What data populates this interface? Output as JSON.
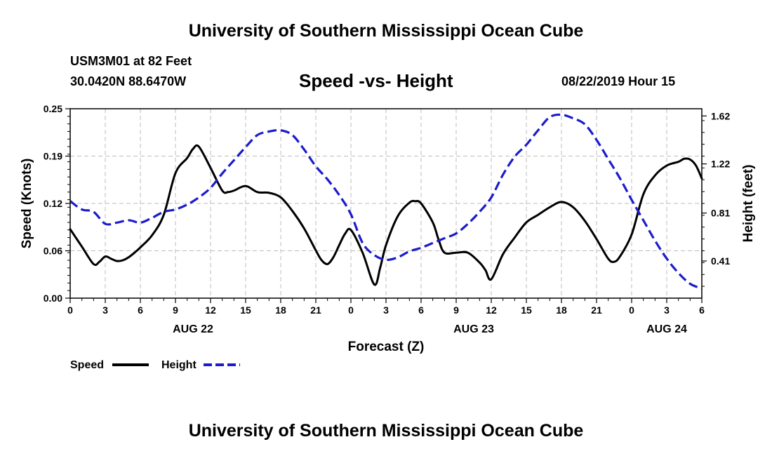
{
  "header": {
    "title": "University of Southern Mississippi Ocean Cube",
    "station": "USM3M01 at 82 Feet",
    "coordinates": "30.0420N 88.6470W",
    "subtitle": "Speed -vs- Height",
    "datetime": "08/22/2019 Hour 15"
  },
  "footer": {
    "title": "University of Southern Mississippi Ocean Cube"
  },
  "chart_data": {
    "type": "line",
    "title": "Speed -vs- Height",
    "xlabel": "Forecast (Z)",
    "ylabel_left": "Speed (Knots)",
    "ylabel_right": "Height (feet)",
    "grid": true,
    "xlim": [
      0,
      54
    ],
    "ylim_left": [
      0,
      0.25
    ],
    "ylim_right": [
      0.1,
      1.68
    ],
    "x_ticks": [
      {
        "x": 0,
        "label": "0"
      },
      {
        "x": 3,
        "label": "3"
      },
      {
        "x": 6,
        "label": "6"
      },
      {
        "x": 9,
        "label": "9"
      },
      {
        "x": 12,
        "label": "12"
      },
      {
        "x": 15,
        "label": "15"
      },
      {
        "x": 18,
        "label": "18"
      },
      {
        "x": 21,
        "label": "21"
      },
      {
        "x": 24,
        "label": "0"
      },
      {
        "x": 27,
        "label": "3"
      },
      {
        "x": 30,
        "label": "6"
      },
      {
        "x": 33,
        "label": "9"
      },
      {
        "x": 36,
        "label": "12"
      },
      {
        "x": 39,
        "label": "15"
      },
      {
        "x": 42,
        "label": "18"
      },
      {
        "x": 45,
        "label": "21"
      },
      {
        "x": 48,
        "label": "0"
      },
      {
        "x": 51,
        "label": "3"
      },
      {
        "x": 54,
        "label": "6"
      }
    ],
    "date_labels": [
      {
        "x": 10.5,
        "label": "AUG 22"
      },
      {
        "x": 34.5,
        "label": "AUG 23"
      },
      {
        "x": 51,
        "label": "AUG 24"
      }
    ],
    "y_ticks_left": [
      {
        "value": 0.0,
        "label": "0.00"
      },
      {
        "value": 0.0625,
        "label": "0.06"
      },
      {
        "value": 0.125,
        "label": "0.12"
      },
      {
        "value": 0.1875,
        "label": "0.19"
      },
      {
        "value": 0.25,
        "label": "0.25"
      }
    ],
    "y_ticks_right": [
      {
        "value": 0.41,
        "label": "0.41"
      },
      {
        "value": 0.81,
        "label": "0.81"
      },
      {
        "value": 1.22,
        "label": "1.22"
      },
      {
        "value": 1.62,
        "label": "1.62"
      }
    ],
    "legend": {
      "position": "bottom-left",
      "items": [
        {
          "name": "Speed",
          "style": "solid",
          "color": "#000000"
        },
        {
          "name": "Height",
          "style": "dashed",
          "color": "#1c1ccc"
        }
      ]
    },
    "series": [
      {
        "name": "Speed",
        "axis": "left",
        "style": "solid",
        "color": "#000000",
        "x": [
          0,
          1,
          2,
          2.5,
          3,
          3.5,
          4,
          4.5,
          5,
          5.5,
          6,
          7,
          8,
          9,
          10,
          10.5,
          11,
          12,
          13,
          13.5,
          14,
          15,
          16,
          17,
          18,
          19,
          20,
          21,
          21.5,
          22,
          22.5,
          23,
          23.5,
          24,
          25,
          26,
          26.5,
          27,
          28,
          29,
          29.5,
          30,
          31,
          31.5,
          32,
          33,
          34,
          35,
          35.5,
          36,
          37,
          38,
          39,
          40,
          41,
          42,
          43,
          44,
          45,
          46,
          46.5,
          47,
          48,
          49,
          50,
          51,
          52,
          52.5,
          53,
          53.5,
          54
        ],
        "y": [
          0.091,
          0.068,
          0.045,
          0.048,
          0.055,
          0.052,
          0.049,
          0.05,
          0.054,
          0.06,
          0.067,
          0.083,
          0.11,
          0.165,
          0.185,
          0.197,
          0.2,
          0.172,
          0.142,
          0.14,
          0.142,
          0.148,
          0.14,
          0.139,
          0.133,
          0.115,
          0.092,
          0.063,
          0.05,
          0.045,
          0.054,
          0.07,
          0.085,
          0.09,
          0.06,
          0.018,
          0.04,
          0.07,
          0.108,
          0.126,
          0.128,
          0.125,
          0.1,
          0.077,
          0.06,
          0.06,
          0.06,
          0.047,
          0.037,
          0.025,
          0.058,
          0.08,
          0.1,
          0.11,
          0.12,
          0.127,
          0.12,
          0.102,
          0.078,
          0.052,
          0.048,
          0.055,
          0.084,
          0.137,
          0.162,
          0.175,
          0.18,
          0.184,
          0.183,
          0.175,
          0.158
        ]
      },
      {
        "name": "Height",
        "axis": "right",
        "style": "dashed",
        "color": "#1c1ccc",
        "x": [
          0,
          1,
          2,
          3,
          4,
          5,
          6,
          7,
          8,
          9,
          10,
          11,
          12,
          13,
          14,
          15,
          16,
          17,
          18,
          19,
          20,
          21,
          22,
          23,
          24,
          25,
          26,
          27,
          28,
          29,
          30,
          31,
          32,
          33,
          34,
          35,
          36,
          37,
          38,
          39,
          40,
          41,
          42,
          43,
          44,
          45,
          46,
          47,
          48,
          49,
          50,
          51,
          52,
          53,
          54
        ],
        "y": [
          0.91,
          0.84,
          0.82,
          0.72,
          0.73,
          0.75,
          0.73,
          0.77,
          0.82,
          0.84,
          0.88,
          0.94,
          1.02,
          1.14,
          1.25,
          1.36,
          1.46,
          1.49,
          1.5,
          1.46,
          1.34,
          1.2,
          1.09,
          0.96,
          0.8,
          0.56,
          0.46,
          0.42,
          0.44,
          0.49,
          0.52,
          0.56,
          0.6,
          0.64,
          0.72,
          0.82,
          0.94,
          1.13,
          1.28,
          1.38,
          1.5,
          1.61,
          1.63,
          1.6,
          1.55,
          1.42,
          1.26,
          1.1,
          0.92,
          0.75,
          0.58,
          0.43,
          0.31,
          0.22,
          0.18
        ]
      }
    ]
  }
}
